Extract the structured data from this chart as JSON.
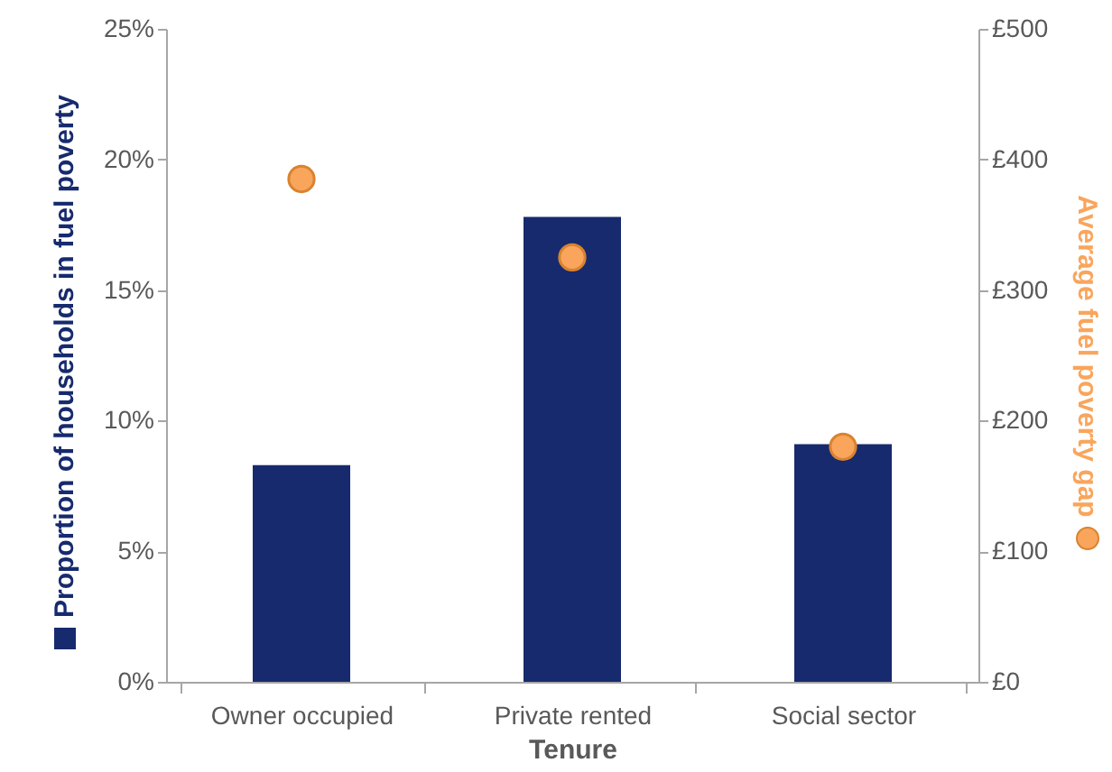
{
  "chart_data": {
    "type": "bar",
    "xlabel": "Tenure",
    "ylabel": "Proportion of households in fuel poverty",
    "y2label": "Average fuel poverty gap",
    "categories": [
      "Owner occupied",
      "Private rented",
      "Social sector"
    ],
    "series": [
      {
        "color": "#172a6e",
        "values": [
          8.3,
          17.8,
          9.1
        ]
      },
      {
        "type": "scatter",
        "axis": "y2",
        "color": "#f9a55c",
        "marker": "circle",
        "values": [
          385,
          325,
          180
        ]
      }
    ],
    "ylim": [
      0,
      25
    ],
    "yticks": [
      {
        "value": 0,
        "label": "0%"
      },
      {
        "value": 5,
        "label": "5%"
      },
      {
        "value": 10,
        "label": "10%"
      },
      {
        "value": 15,
        "label": "15%"
      },
      {
        "value": 20,
        "label": "20%"
      },
      {
        "value": 25,
        "label": "25%"
      }
    ],
    "y2lim": [
      0,
      500
    ],
    "y2ticks": [
      {
        "value": 0,
        "label": "£0"
      },
      {
        "value": 100,
        "label": "£100"
      },
      {
        "value": 200,
        "label": "£200"
      },
      {
        "value": 300,
        "label": "£300"
      },
      {
        "value": 400,
        "label": "£400"
      },
      {
        "value": 500,
        "label": "£500"
      }
    ]
  }
}
